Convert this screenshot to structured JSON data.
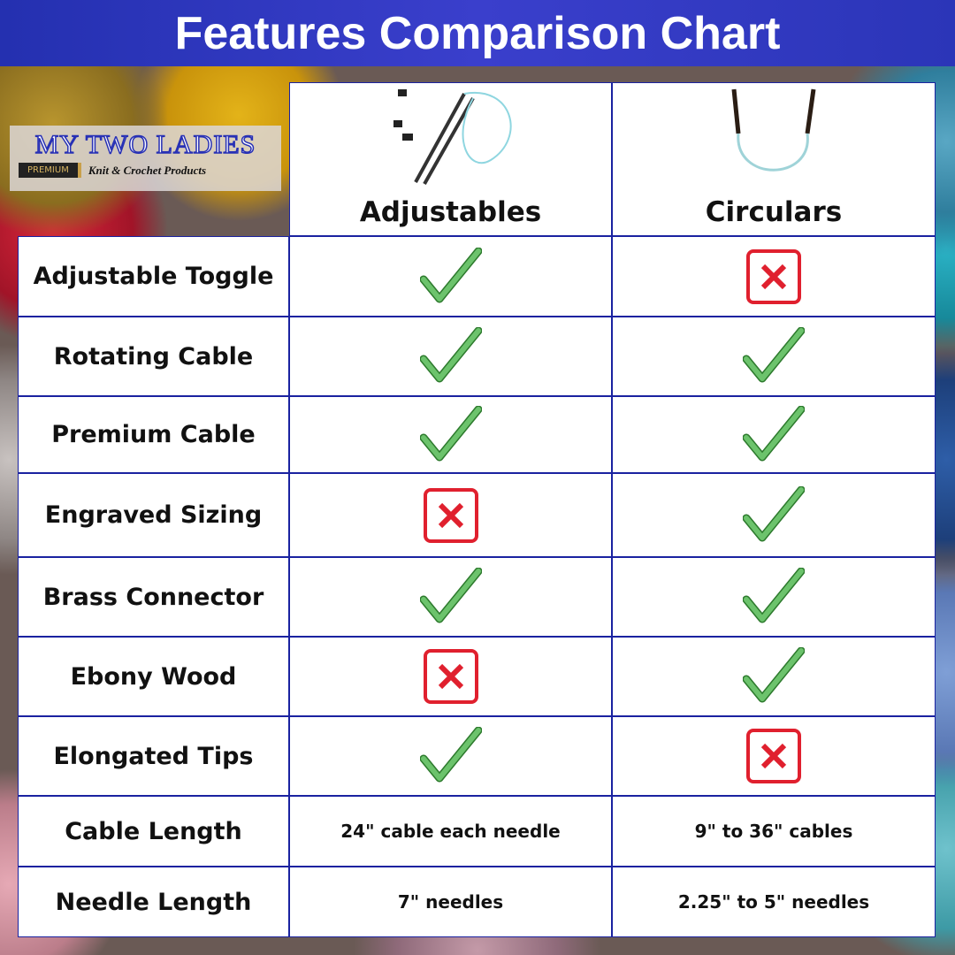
{
  "title": "Features Comparison Chart",
  "logo": {
    "brand": "MY TWO LADIES",
    "badge": "PREMIUM",
    "tagline": "Knit & Crochet Products"
  },
  "columns": [
    "Adjustables",
    "Circulars"
  ],
  "colors": {
    "check": "#5cb85c",
    "cross": "#e0202e",
    "border": "#1a22a0",
    "title_bar": "#2b35b8"
  },
  "rows": [
    {
      "feature": "Adjustable Toggle",
      "values": [
        "check",
        "cross"
      ]
    },
    {
      "feature": "Rotating Cable",
      "values": [
        "check",
        "check"
      ]
    },
    {
      "feature": "Premium Cable",
      "values": [
        "check",
        "check"
      ]
    },
    {
      "feature": "Engraved Sizing",
      "values": [
        "cross",
        "check"
      ]
    },
    {
      "feature": "Brass Connector",
      "values": [
        "check",
        "check"
      ]
    },
    {
      "feature": "Ebony Wood",
      "values": [
        "cross",
        "check"
      ]
    },
    {
      "feature": "Elongated Tips",
      "values": [
        "check",
        "cross"
      ]
    },
    {
      "feature": "Cable Length",
      "values": [
        "24\" cable each needle",
        "9\" to 36\" cables"
      ]
    },
    {
      "feature": "Needle Length",
      "values": [
        "7\" needles",
        "2.25\" to 5\" needles"
      ]
    }
  ]
}
